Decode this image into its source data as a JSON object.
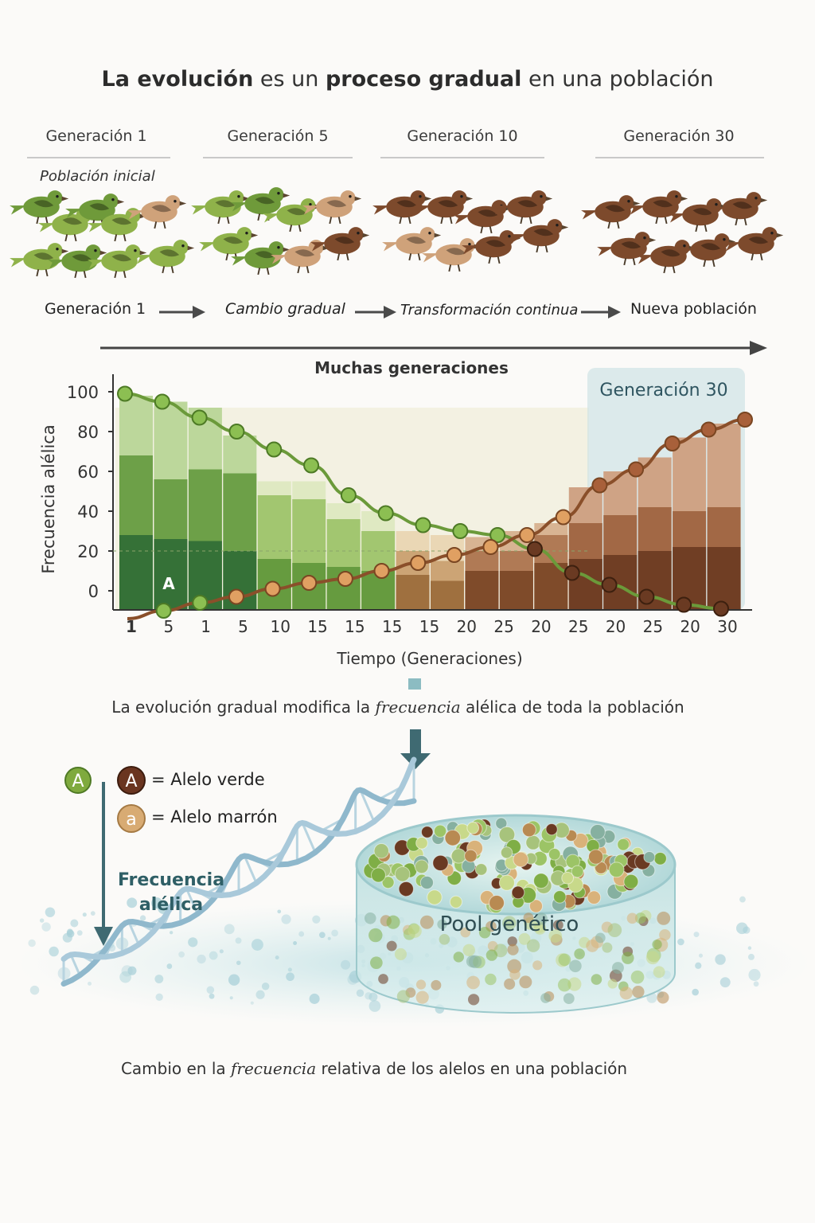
{
  "title": {
    "part1": "La evolución",
    "part2": " es un ",
    "part3": "proceso gradual",
    "part4": " en una población"
  },
  "generations": [
    {
      "label": "Generación 1"
    },
    {
      "label": "Generación 5"
    },
    {
      "label": "Generación 10"
    },
    {
      "label": "Generación 30"
    }
  ],
  "initial_population": "Población inicial",
  "flow": {
    "step1": "Generación 1",
    "step2": "Cambio gradual",
    "step3": "Transformación continua",
    "step4": "Nueva población"
  },
  "many_generations": "Muchas generaciones",
  "colors": {
    "green_bird": "#6f9a3a",
    "light_green_bird": "#8fb24a",
    "tan_bird": "#cfa27a",
    "brown_bird": "#7d4a2c",
    "green_curve": "#6b9a3a",
    "brown_curve": "#8a4f2a",
    "accent_teal": "#4e7f86"
  },
  "chart_data": {
    "type": "line",
    "ylabel": "Frecuencia alélica",
    "xlabel": "Tiempo (Generaciones)",
    "ylim": [
      -10,
      110
    ],
    "yticks": [
      100,
      80,
      60,
      40,
      20,
      0
    ],
    "tick_labels": [
      "1",
      "5",
      "1",
      "5",
      "10",
      "15",
      "15",
      "15",
      "15",
      "20",
      "25",
      "20",
      "25",
      "20",
      "25",
      "20",
      "30"
    ],
    "highlight_label": "Generación 30",
    "bar_label": "A",
    "series": [
      {
        "values": [
          99,
          95,
          87,
          80,
          71,
          63,
          48,
          39,
          33,
          30,
          28,
          21,
          9,
          3,
          -3,
          -7,
          -9
        ]
      },
      {
        "values": [
          -14,
          -10,
          -6,
          -3,
          1,
          4,
          6,
          10,
          14,
          18,
          22,
          28,
          37,
          53,
          61,
          74,
          81,
          86
        ]
      }
    ],
    "bars": [
      {
        "total": 98,
        "dark": 28,
        "mid": 68,
        "stage": 0
      },
      {
        "total": 95,
        "dark": 26,
        "mid": 56,
        "stage": 0
      },
      {
        "total": 92,
        "dark": 25,
        "mid": 61,
        "stage": 0
      },
      {
        "total": 78,
        "dark": 20,
        "mid": 59,
        "stage": 0
      },
      {
        "total": 55,
        "dark": 16,
        "mid": 48,
        "stage": 1
      },
      {
        "total": 55,
        "dark": 14,
        "mid": 46,
        "stage": 1
      },
      {
        "total": 44,
        "dark": 12,
        "mid": 36,
        "stage": 1
      },
      {
        "total": 40,
        "dark": 10,
        "mid": 30,
        "stage": 1
      },
      {
        "total": 30,
        "dark": 8,
        "mid": 20,
        "stage": 2
      },
      {
        "total": 28,
        "dark": 5,
        "mid": 15,
        "stage": 2
      },
      {
        "total": 27,
        "dark": 10,
        "mid": 20,
        "stage": 3
      },
      {
        "total": 30,
        "dark": 10,
        "mid": 20,
        "stage": 3
      },
      {
        "total": 34,
        "dark": 14,
        "mid": 28,
        "stage": 3
      },
      {
        "total": 52,
        "dark": 16,
        "mid": 34,
        "stage": 4
      },
      {
        "total": 60,
        "dark": 18,
        "mid": 38,
        "stage": 4
      },
      {
        "total": 67,
        "dark": 20,
        "mid": 42,
        "stage": 4
      },
      {
        "total": 77,
        "dark": 22,
        "mid": 40,
        "stage": 4
      },
      {
        "total": 84,
        "dark": 22,
        "mid": 42,
        "stage": 4
      }
    ]
  },
  "caption1": {
    "part1": "La evolución gradual modifica la ",
    "part2": "frecuencia",
    "part3": " alélica de toda la población"
  },
  "legend": {
    "symbol_A": "A",
    "symbol_a": "a",
    "green_allele": "= Alelo verde",
    "brown_allele": "= Alelo marrón"
  },
  "frequency_label_line1": "Frecuencia",
  "frequency_label_line2": "alélica",
  "pool_label": "Pool genético",
  "caption2": {
    "part1": "Cambio en la ",
    "part2": "frecuencia",
    "part3": " relativa de los alelos en una población"
  }
}
